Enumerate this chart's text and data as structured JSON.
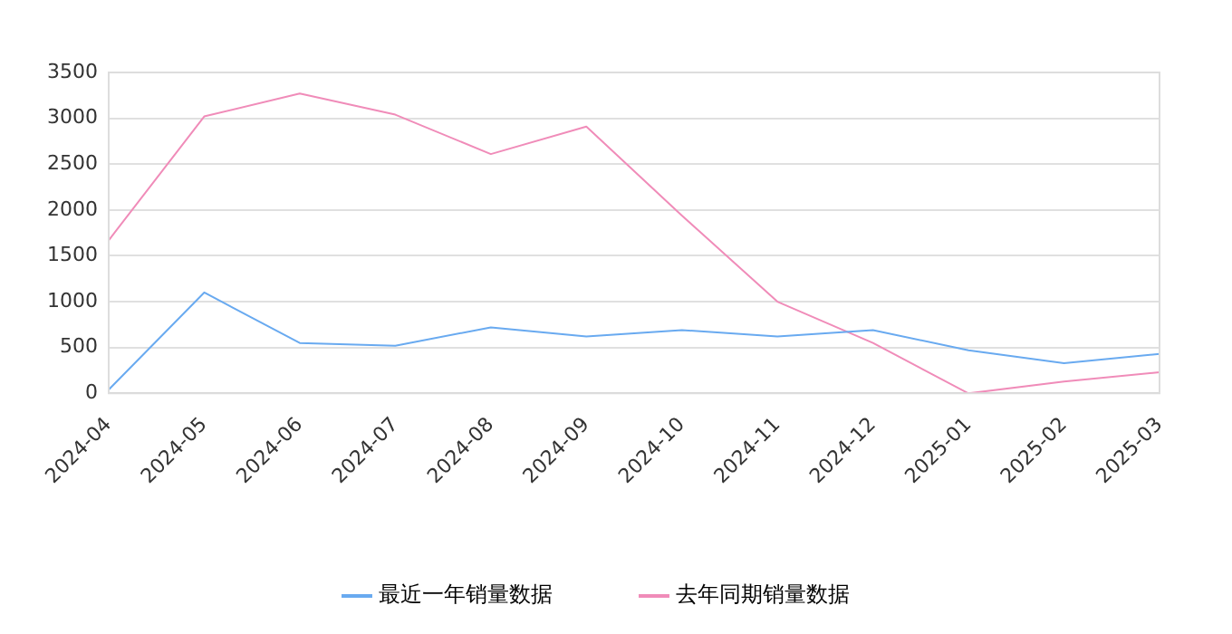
{
  "chart_data": {
    "type": "line",
    "categories": [
      "2024-04",
      "2024-05",
      "2024-06",
      "2024-07",
      "2024-08",
      "2024-09",
      "2024-10",
      "2024-11",
      "2024-12",
      "2025-01",
      "2025-02",
      "2025-03"
    ],
    "series": [
      {
        "name": "最近一年销量数据",
        "color": "#69aaf0",
        "values": [
          40,
          1100,
          550,
          520,
          720,
          620,
          690,
          620,
          690,
          470,
          330,
          430
        ]
      },
      {
        "name": "去年同期销量数据",
        "color": "#f08cb9",
        "values": [
          1670,
          3020,
          3270,
          3040,
          2610,
          2910,
          1940,
          1000,
          550,
          0,
          130,
          230
        ]
      }
    ],
    "ylim": [
      0,
      3500
    ],
    "yticks": [
      0,
      500,
      1000,
      1500,
      2000,
      2500,
      3000,
      3500
    ],
    "grid": "y",
    "legend": "bottom",
    "marker": "none",
    "line_style": "solid"
  }
}
